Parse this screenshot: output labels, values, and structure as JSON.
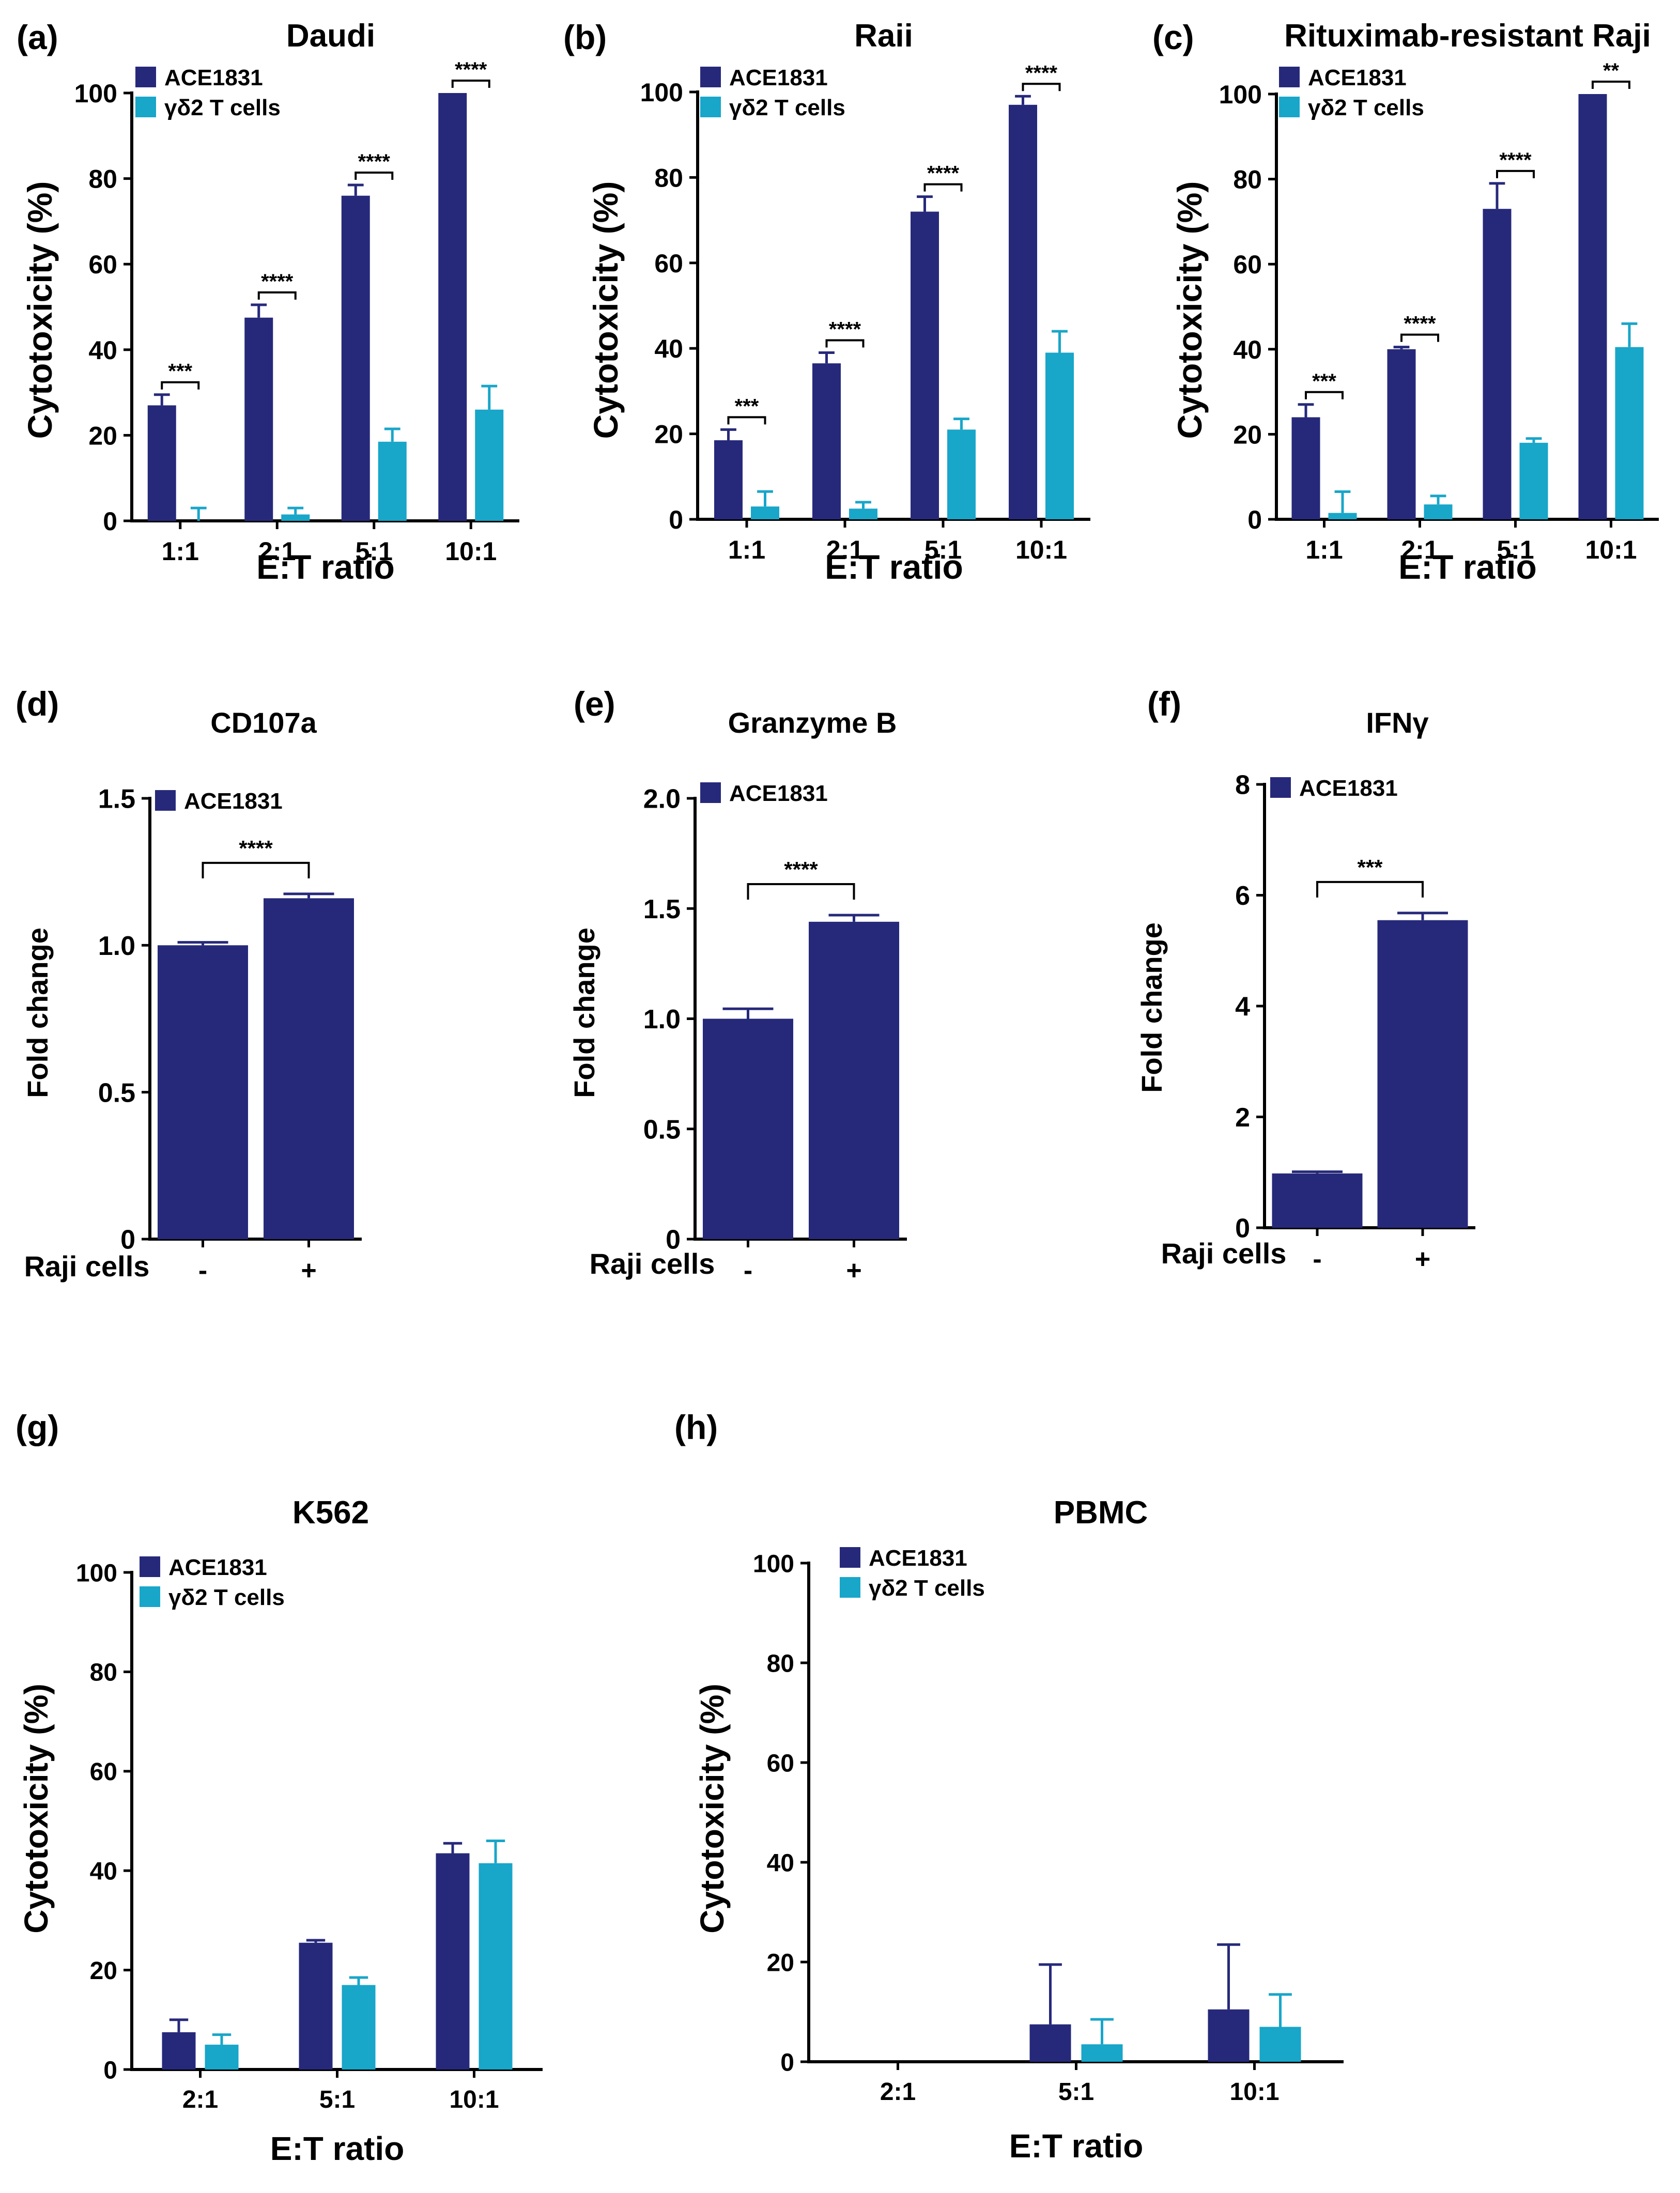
{
  "chart_data": [
    {
      "id": "a",
      "panel_label": "(a)",
      "type": "bar",
      "title": "Daudi",
      "xlabel": "E:T ratio",
      "ylabel": "Cytotoxicity (%)",
      "ylim": [
        0,
        100
      ],
      "yticks": [
        "0",
        "20",
        "40",
        "60",
        "80",
        "100"
      ],
      "categories": [
        "1:1",
        "2:1",
        "5:1",
        "10:1"
      ],
      "series": [
        {
          "name": "ACE1831",
          "color": "#26297a",
          "values": [
            27,
            47.5,
            76,
            100
          ],
          "errors": [
            2.5,
            3,
            2.5,
            0
          ]
        },
        {
          "name": "γδ2 T cells",
          "color": "#18a6c9",
          "values": [
            0,
            1.5,
            18.5,
            26
          ],
          "errors": [
            3,
            1.5,
            3,
            5.5
          ]
        }
      ],
      "significance": [
        "***",
        "****",
        "****",
        "****"
      ],
      "legend": "top-left"
    },
    {
      "id": "b",
      "panel_label": "(b)",
      "type": "bar",
      "title": "Raii",
      "xlabel": "E:T ratio",
      "ylabel": "Cytotoxicity (%)",
      "ylim": [
        0,
        100
      ],
      "yticks": [
        "0",
        "20",
        "40",
        "60",
        "80",
        "100"
      ],
      "categories": [
        "1:1",
        "2:1",
        "5:1",
        "10:1"
      ],
      "series": [
        {
          "name": "ACE1831",
          "color": "#26297a",
          "values": [
            18.5,
            36.5,
            72,
            97
          ],
          "errors": [
            2.5,
            2.5,
            3.5,
            2
          ]
        },
        {
          "name": "γδ2 T cells",
          "color": "#18a6c9",
          "values": [
            3,
            2.5,
            21,
            39
          ],
          "errors": [
            3.5,
            1.5,
            2.5,
            5
          ]
        }
      ],
      "significance": [
        "***",
        "****",
        "****",
        "****"
      ],
      "legend": "top-left"
    },
    {
      "id": "c",
      "panel_label": "(c)",
      "type": "bar",
      "title": "Rituximab-resistant Raji",
      "xlabel": "E:T ratio",
      "ylabel": "Cytotoxicity (%)",
      "ylim": [
        0,
        100
      ],
      "yticks": [
        "0",
        "20",
        "40",
        "60",
        "80",
        "100"
      ],
      "categories": [
        "1:1",
        "2:1",
        "5:1",
        "10:1"
      ],
      "series": [
        {
          "name": "ACE1831",
          "color": "#26297a",
          "values": [
            24,
            40,
            73,
            100
          ],
          "errors": [
            3,
            0.5,
            6,
            0
          ]
        },
        {
          "name": "γδ2 T cells",
          "color": "#18a6c9",
          "values": [
            1.5,
            3.5,
            18,
            40.5
          ],
          "errors": [
            5,
            2,
            1,
            5.5
          ]
        }
      ],
      "significance": [
        "***",
        "****",
        "****",
        "**"
      ],
      "legend": "top-left"
    },
    {
      "id": "d",
      "panel_label": "(d)",
      "type": "bar",
      "title": "CD107a",
      "xlabel": "Raji cells",
      "ylabel": "Fold change",
      "ylim": [
        0,
        1.5
      ],
      "yticks": [
        "0",
        "0.5",
        "1.0",
        "1.5"
      ],
      "categories": [
        "-",
        "+"
      ],
      "series": [
        {
          "name": "ACE1831",
          "color": "#26297a",
          "values": [
            1.0,
            1.16
          ],
          "errors": [
            0.01,
            0.015
          ]
        }
      ],
      "significance": [
        "****"
      ],
      "legend": "top-left"
    },
    {
      "id": "e",
      "panel_label": "(e)",
      "type": "bar",
      "title": "Granzyme B",
      "xlabel": "Raji cells",
      "ylabel": "Fold change",
      "ylim": [
        0,
        2.0
      ],
      "yticks": [
        "0",
        "0.5",
        "1.0",
        "1.5",
        "2.0"
      ],
      "categories": [
        "-",
        "+"
      ],
      "series": [
        {
          "name": "ACE1831",
          "color": "#26297a",
          "values": [
            1.0,
            1.44
          ],
          "errors": [
            0.045,
            0.03
          ]
        }
      ],
      "significance": [
        "****"
      ],
      "legend": "top-left"
    },
    {
      "id": "f",
      "panel_label": "(f)",
      "type": "bar",
      "title": "IFNγ",
      "xlabel": "Raji cells",
      "ylabel": "Fold change",
      "ylim": [
        0,
        8
      ],
      "yticks": [
        "0",
        "2",
        "4",
        "6",
        "8"
      ],
      "categories": [
        "-",
        "+"
      ],
      "series": [
        {
          "name": "ACE1831",
          "color": "#26297a",
          "values": [
            0.98,
            5.55
          ],
          "errors": [
            0.03,
            0.13
          ]
        }
      ],
      "significance": [
        "***"
      ],
      "legend": "top-left"
    },
    {
      "id": "g",
      "panel_label": "(g)",
      "type": "bar",
      "title": "K562",
      "xlabel": "E:T ratio",
      "ylabel": "Cytotoxicity (%)",
      "ylim": [
        0,
        100
      ],
      "yticks": [
        "0",
        "20",
        "40",
        "60",
        "80",
        "100"
      ],
      "categories": [
        "2:1",
        "5:1",
        "10:1"
      ],
      "series": [
        {
          "name": "ACE1831",
          "color": "#26297a",
          "values": [
            7.5,
            25.5,
            43.5
          ],
          "errors": [
            2.5,
            0.5,
            2
          ]
        },
        {
          "name": "γδ2 T cells",
          "color": "#18a6c9",
          "values": [
            5,
            17,
            41.5
          ],
          "errors": [
            2,
            1.5,
            4.5
          ]
        }
      ],
      "significance": [],
      "legend": "top-left"
    },
    {
      "id": "h",
      "panel_label": "(h)",
      "type": "bar",
      "title": "PBMC",
      "xlabel": "E:T ratio",
      "ylabel": "Cytotoxicity (%)",
      "ylim": [
        0,
        100
      ],
      "yticks": [
        "0",
        "20",
        "40",
        "60",
        "80",
        "100"
      ],
      "categories": [
        "2:1",
        "5:1",
        "10:1"
      ],
      "series": [
        {
          "name": "ACE1831",
          "color": "#26297a",
          "values": [
            0,
            7.5,
            10.5
          ],
          "errors": [
            0,
            12,
            13
          ]
        },
        {
          "name": "γδ2 T cells",
          "color": "#18a6c9",
          "values": [
            0,
            3.5,
            7
          ],
          "errors": [
            0,
            5,
            6.5
          ]
        }
      ],
      "significance": [],
      "legend": "top-left"
    }
  ]
}
